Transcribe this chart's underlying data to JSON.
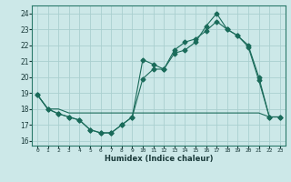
{
  "xlabel": "Humidex (Indice chaleur)",
  "background_color": "#cce8e8",
  "grid_color": "#aacfcf",
  "line_color": "#1a6b5a",
  "xlim": [
    -0.5,
    23.5
  ],
  "ylim": [
    15.7,
    24.5
  ],
  "yticks": [
    16,
    17,
    18,
    19,
    20,
    21,
    22,
    23,
    24
  ],
  "xticks": [
    0,
    1,
    2,
    3,
    4,
    5,
    6,
    7,
    8,
    9,
    10,
    11,
    12,
    13,
    14,
    15,
    16,
    17,
    18,
    19,
    20,
    21,
    22,
    23
  ],
  "line1_x": [
    0,
    1,
    2,
    3,
    4,
    5,
    6,
    7,
    8,
    9,
    10,
    11,
    12,
    13,
    14,
    15,
    16,
    17,
    18,
    19,
    20,
    21,
    22,
    23
  ],
  "line1_y": [
    18.9,
    18.0,
    17.7,
    17.5,
    17.3,
    16.7,
    16.5,
    16.5,
    17.0,
    17.5,
    21.1,
    20.8,
    20.5,
    21.5,
    21.7,
    22.2,
    23.2,
    24.0,
    23.0,
    22.6,
    22.0,
    20.0,
    17.5,
    17.5
  ],
  "line2_x": [
    0,
    1,
    2,
    3,
    4,
    5,
    6,
    7,
    8,
    9,
    10,
    11,
    12,
    13,
    14,
    15,
    16,
    17,
    18,
    19,
    20,
    21,
    22,
    23
  ],
  "line2_y": [
    18.9,
    18.0,
    17.7,
    17.5,
    17.3,
    16.7,
    16.5,
    16.5,
    17.0,
    17.5,
    19.9,
    20.5,
    20.5,
    21.7,
    22.2,
    22.4,
    22.9,
    23.5,
    23.0,
    22.6,
    21.9,
    19.8,
    17.5,
    17.5
  ],
  "line3_x": [
    0,
    1,
    2,
    3,
    4,
    5,
    6,
    7,
    8,
    9,
    10,
    11,
    12,
    13,
    14,
    15,
    16,
    17,
    18,
    19,
    20,
    21,
    22,
    23
  ],
  "line3_y": [
    18.9,
    18.0,
    18.0,
    17.75,
    17.75,
    17.75,
    17.75,
    17.75,
    17.75,
    17.75,
    17.75,
    17.75,
    17.75,
    17.75,
    17.75,
    17.75,
    17.75,
    17.75,
    17.75,
    17.75,
    17.75,
    17.75,
    17.5,
    17.5
  ]
}
